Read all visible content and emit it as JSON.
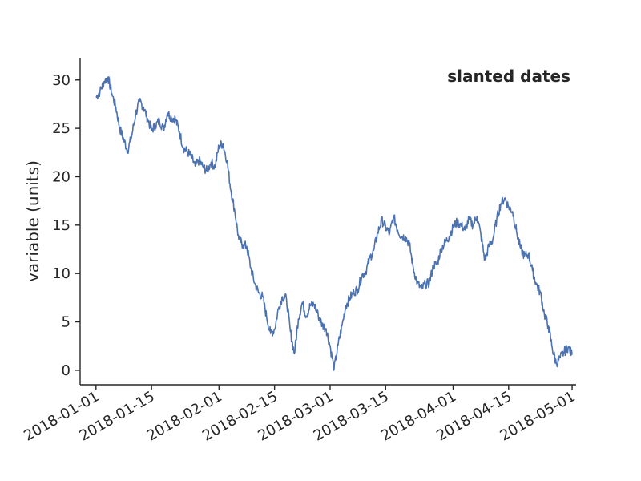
{
  "chart_data": {
    "type": "line",
    "title": "",
    "xlabel": "",
    "ylabel": "variable (units)",
    "annotation": "slanted dates",
    "x_range": [
      "2017-12-28",
      "2018-05-02"
    ],
    "ylim": [
      -1.5,
      32.3
    ],
    "yticks": [
      0,
      5,
      10,
      15,
      20,
      25,
      30
    ],
    "xticks": [
      "2018-01-01",
      "2018-01-15",
      "2018-02-01",
      "2018-02-15",
      "2018-03-01",
      "2018-03-15",
      "2018-04-01",
      "2018-04-15",
      "2018-05-01"
    ],
    "grid": false,
    "series_color": "#4c72b0",
    "series": [
      {
        "points": [
          [
            "2018-01-01",
            28.2
          ],
          [
            "2018-01-02",
            28.8
          ],
          [
            "2018-01-03",
            29.8
          ],
          [
            "2018-01-04",
            30.3
          ],
          [
            "2018-01-05",
            28.6
          ],
          [
            "2018-01-06",
            27.2
          ],
          [
            "2018-01-07",
            25.0
          ],
          [
            "2018-01-08",
            23.8
          ],
          [
            "2018-01-09",
            22.7
          ],
          [
            "2018-01-10",
            24.2
          ],
          [
            "2018-01-11",
            26.5
          ],
          [
            "2018-01-12",
            27.8
          ],
          [
            "2018-01-13",
            27.2
          ],
          [
            "2018-01-14",
            26.0
          ],
          [
            "2018-01-15",
            24.8
          ],
          [
            "2018-01-16",
            25.3
          ],
          [
            "2018-01-17",
            25.8
          ],
          [
            "2018-01-18",
            24.9
          ],
          [
            "2018-01-19",
            26.6
          ],
          [
            "2018-01-20",
            26.1
          ],
          [
            "2018-01-21",
            26.0
          ],
          [
            "2018-01-22",
            24.7
          ],
          [
            "2018-01-23",
            23.0
          ],
          [
            "2018-01-24",
            22.6
          ],
          [
            "2018-01-25",
            22.1
          ],
          [
            "2018-01-26",
            21.1
          ],
          [
            "2018-01-27",
            21.7
          ],
          [
            "2018-01-28",
            21.0
          ],
          [
            "2018-01-29",
            20.6
          ],
          [
            "2018-01-30",
            21.5
          ],
          [
            "2018-01-31",
            21.0
          ],
          [
            "2018-02-01",
            23.2
          ],
          [
            "2018-02-02",
            23.4
          ],
          [
            "2018-02-03",
            21.7
          ],
          [
            "2018-02-04",
            18.6
          ],
          [
            "2018-02-05",
            16.4
          ],
          [
            "2018-02-06",
            13.5
          ],
          [
            "2018-02-07",
            13.0
          ],
          [
            "2018-02-08",
            12.8
          ],
          [
            "2018-02-09",
            10.6
          ],
          [
            "2018-02-10",
            9.0
          ],
          [
            "2018-02-11",
            8.0
          ],
          [
            "2018-02-12",
            7.6
          ],
          [
            "2018-02-13",
            5.5
          ],
          [
            "2018-02-14",
            3.8
          ],
          [
            "2018-02-15",
            4.2
          ],
          [
            "2018-02-16",
            6.4
          ],
          [
            "2018-02-17",
            7.6
          ],
          [
            "2018-02-18",
            7.4
          ],
          [
            "2018-02-19",
            4.0
          ],
          [
            "2018-02-20",
            1.7
          ],
          [
            "2018-02-21",
            5.3
          ],
          [
            "2018-02-22",
            7.0
          ],
          [
            "2018-02-23",
            5.6
          ],
          [
            "2018-02-24",
            6.7
          ],
          [
            "2018-02-25",
            6.8
          ],
          [
            "2018-02-26",
            5.7
          ],
          [
            "2018-02-27",
            4.7
          ],
          [
            "2018-02-28",
            4.3
          ],
          [
            "2018-03-01",
            2.5
          ],
          [
            "2018-03-02",
            0.1
          ],
          [
            "2018-03-03",
            2.6
          ],
          [
            "2018-03-04",
            4.6
          ],
          [
            "2018-03-05",
            6.7
          ],
          [
            "2018-03-06",
            7.5
          ],
          [
            "2018-03-07",
            8.1
          ],
          [
            "2018-03-08",
            8.4
          ],
          [
            "2018-03-09",
            9.8
          ],
          [
            "2018-03-10",
            10.2
          ],
          [
            "2018-03-11",
            11.6
          ],
          [
            "2018-03-12",
            12.4
          ],
          [
            "2018-03-13",
            14.2
          ],
          [
            "2018-03-14",
            15.5
          ],
          [
            "2018-03-15",
            14.8
          ],
          [
            "2018-03-16",
            14.1
          ],
          [
            "2018-03-17",
            15.9
          ],
          [
            "2018-03-18",
            14.5
          ],
          [
            "2018-03-19",
            13.8
          ],
          [
            "2018-03-20",
            13.8
          ],
          [
            "2018-03-21",
            13.0
          ],
          [
            "2018-03-22",
            10.5
          ],
          [
            "2018-03-23",
            9.0
          ],
          [
            "2018-03-24",
            8.4
          ],
          [
            "2018-03-25",
            8.9
          ],
          [
            "2018-03-26",
            9.0
          ],
          [
            "2018-03-27",
            10.8
          ],
          [
            "2018-03-28",
            11.0
          ],
          [
            "2018-03-29",
            12.6
          ],
          [
            "2018-03-30",
            13.2
          ],
          [
            "2018-03-31",
            13.8
          ],
          [
            "2018-04-01",
            14.8
          ],
          [
            "2018-04-02",
            15.3
          ],
          [
            "2018-04-03",
            15.0
          ],
          [
            "2018-04-04",
            14.5
          ],
          [
            "2018-04-05",
            15.6
          ],
          [
            "2018-04-06",
            15.0
          ],
          [
            "2018-04-07",
            15.9
          ],
          [
            "2018-04-08",
            14.0
          ],
          [
            "2018-04-09",
            11.4
          ],
          [
            "2018-04-10",
            12.8
          ],
          [
            "2018-04-11",
            13.5
          ],
          [
            "2018-04-12",
            15.6
          ],
          [
            "2018-04-13",
            17.2
          ],
          [
            "2018-04-14",
            17.8
          ],
          [
            "2018-04-15",
            16.9
          ],
          [
            "2018-04-16",
            16.4
          ],
          [
            "2018-04-17",
            14.3
          ],
          [
            "2018-04-18",
            12.6
          ],
          [
            "2018-04-19",
            11.8
          ],
          [
            "2018-04-20",
            12.0
          ],
          [
            "2018-04-21",
            10.3
          ],
          [
            "2018-04-22",
            8.9
          ],
          [
            "2018-04-23",
            8.0
          ],
          [
            "2018-04-24",
            5.8
          ],
          [
            "2018-04-25",
            4.6
          ],
          [
            "2018-04-26",
            2.3
          ],
          [
            "2018-04-27",
            0.7
          ],
          [
            "2018-04-28",
            1.3
          ],
          [
            "2018-04-29",
            1.9
          ],
          [
            "2018-04-30",
            2.4
          ],
          [
            "2018-05-01",
            1.6
          ]
        ]
      }
    ]
  }
}
